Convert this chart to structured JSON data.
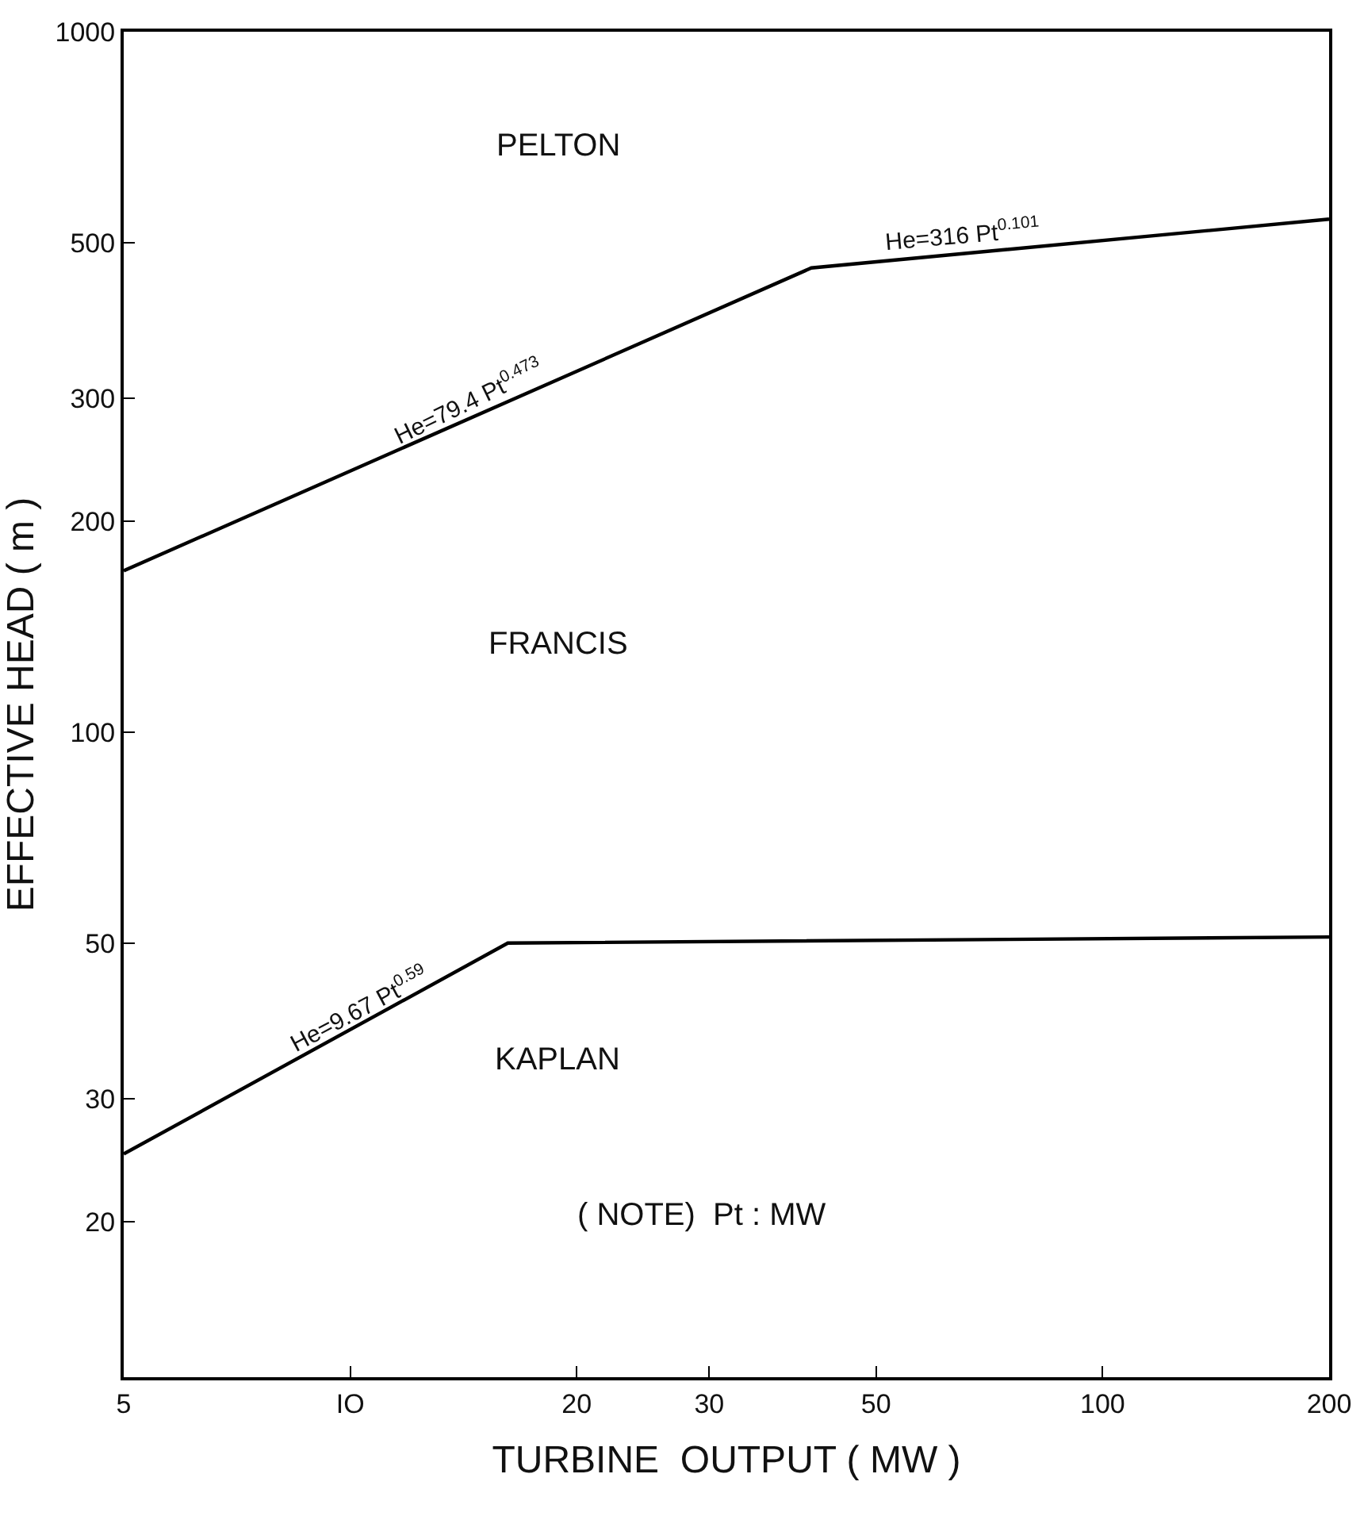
{
  "chart_data": {
    "type": "line",
    "xlabel": "TURBINE  OUTPUT ( MW )",
    "ylabel": "EFFECTIVE HEAD ( m )",
    "log": "xy",
    "xlim": [
      5,
      200
    ],
    "xticks": [
      5,
      {
        "value": 10,
        "label": "IO"
      },
      20,
      30,
      50,
      100,
      200
    ],
    "ylim": [
      12,
      1000
    ],
    "yticks": [
      20,
      30,
      50,
      100,
      200,
      300,
      500,
      1000
    ],
    "marker": "none",
    "line_style": "solid",
    "series": [
      {
        "color": "#000000",
        "x": [
          5,
          41,
          200
        ],
        "values": [
          170,
          460,
          540
        ]
      },
      {
        "color": "#000000",
        "x": [
          5,
          16.2,
          200
        ],
        "values": [
          25,
          50,
          51
        ]
      }
    ],
    "annotations": [
      "PELTON",
      "FRANCIS",
      "KAPLAN",
      "( NOTE)  Pt : MW",
      {
        "text": "He=79.4 Pt$^{0.473}$",
        "x": 14,
        "y": 277
      },
      {
        "text": "He=316 Pt$^{0.101}$",
        "x": 65,
        "y": 482
      },
      {
        "text": "He=9.67 Pt$^{0.59}$",
        "x": 10,
        "y": 37.6
      }
    ]
  }
}
